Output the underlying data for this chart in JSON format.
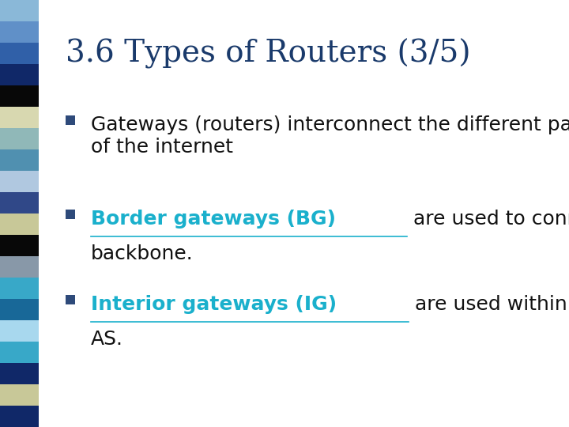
{
  "title": "3.6 Types of Routers (3/5)",
  "title_color": "#1a3a6b",
  "title_fontsize": 28,
  "background_color": "#ffffff",
  "bullet_square_color": "#2e4a7a",
  "text_color": "#111111",
  "link_color": "#1ab0cc",
  "bullets": [
    {
      "parts": [
        {
          "text": "Gateways (routers) interconnect the different parts\nof the internet",
          "link": false
        }
      ]
    },
    {
      "parts": [
        {
          "text": "Border gateways (BG)",
          "link": true
        },
        {
          "text": " are used to connect to the\nbackbone.",
          "link": false
        }
      ]
    },
    {
      "parts": [
        {
          "text": "Interior gateways (IG)",
          "link": true
        },
        {
          "text": " are used within a single\nAS.",
          "link": false
        }
      ]
    }
  ],
  "sidebar_colors": [
    "#8ab8d8",
    "#6090c8",
    "#3060a8",
    "#102868",
    "#080808",
    "#d8d8b0",
    "#90b8b8",
    "#5090b0",
    "#b0c8e0",
    "#304888",
    "#c8c898",
    "#080808",
    "#8898a8",
    "#38a8c8",
    "#186898",
    "#a8d8ee",
    "#38a8c8",
    "#102868",
    "#c8c898",
    "#102868"
  ],
  "font_size_body": 18
}
